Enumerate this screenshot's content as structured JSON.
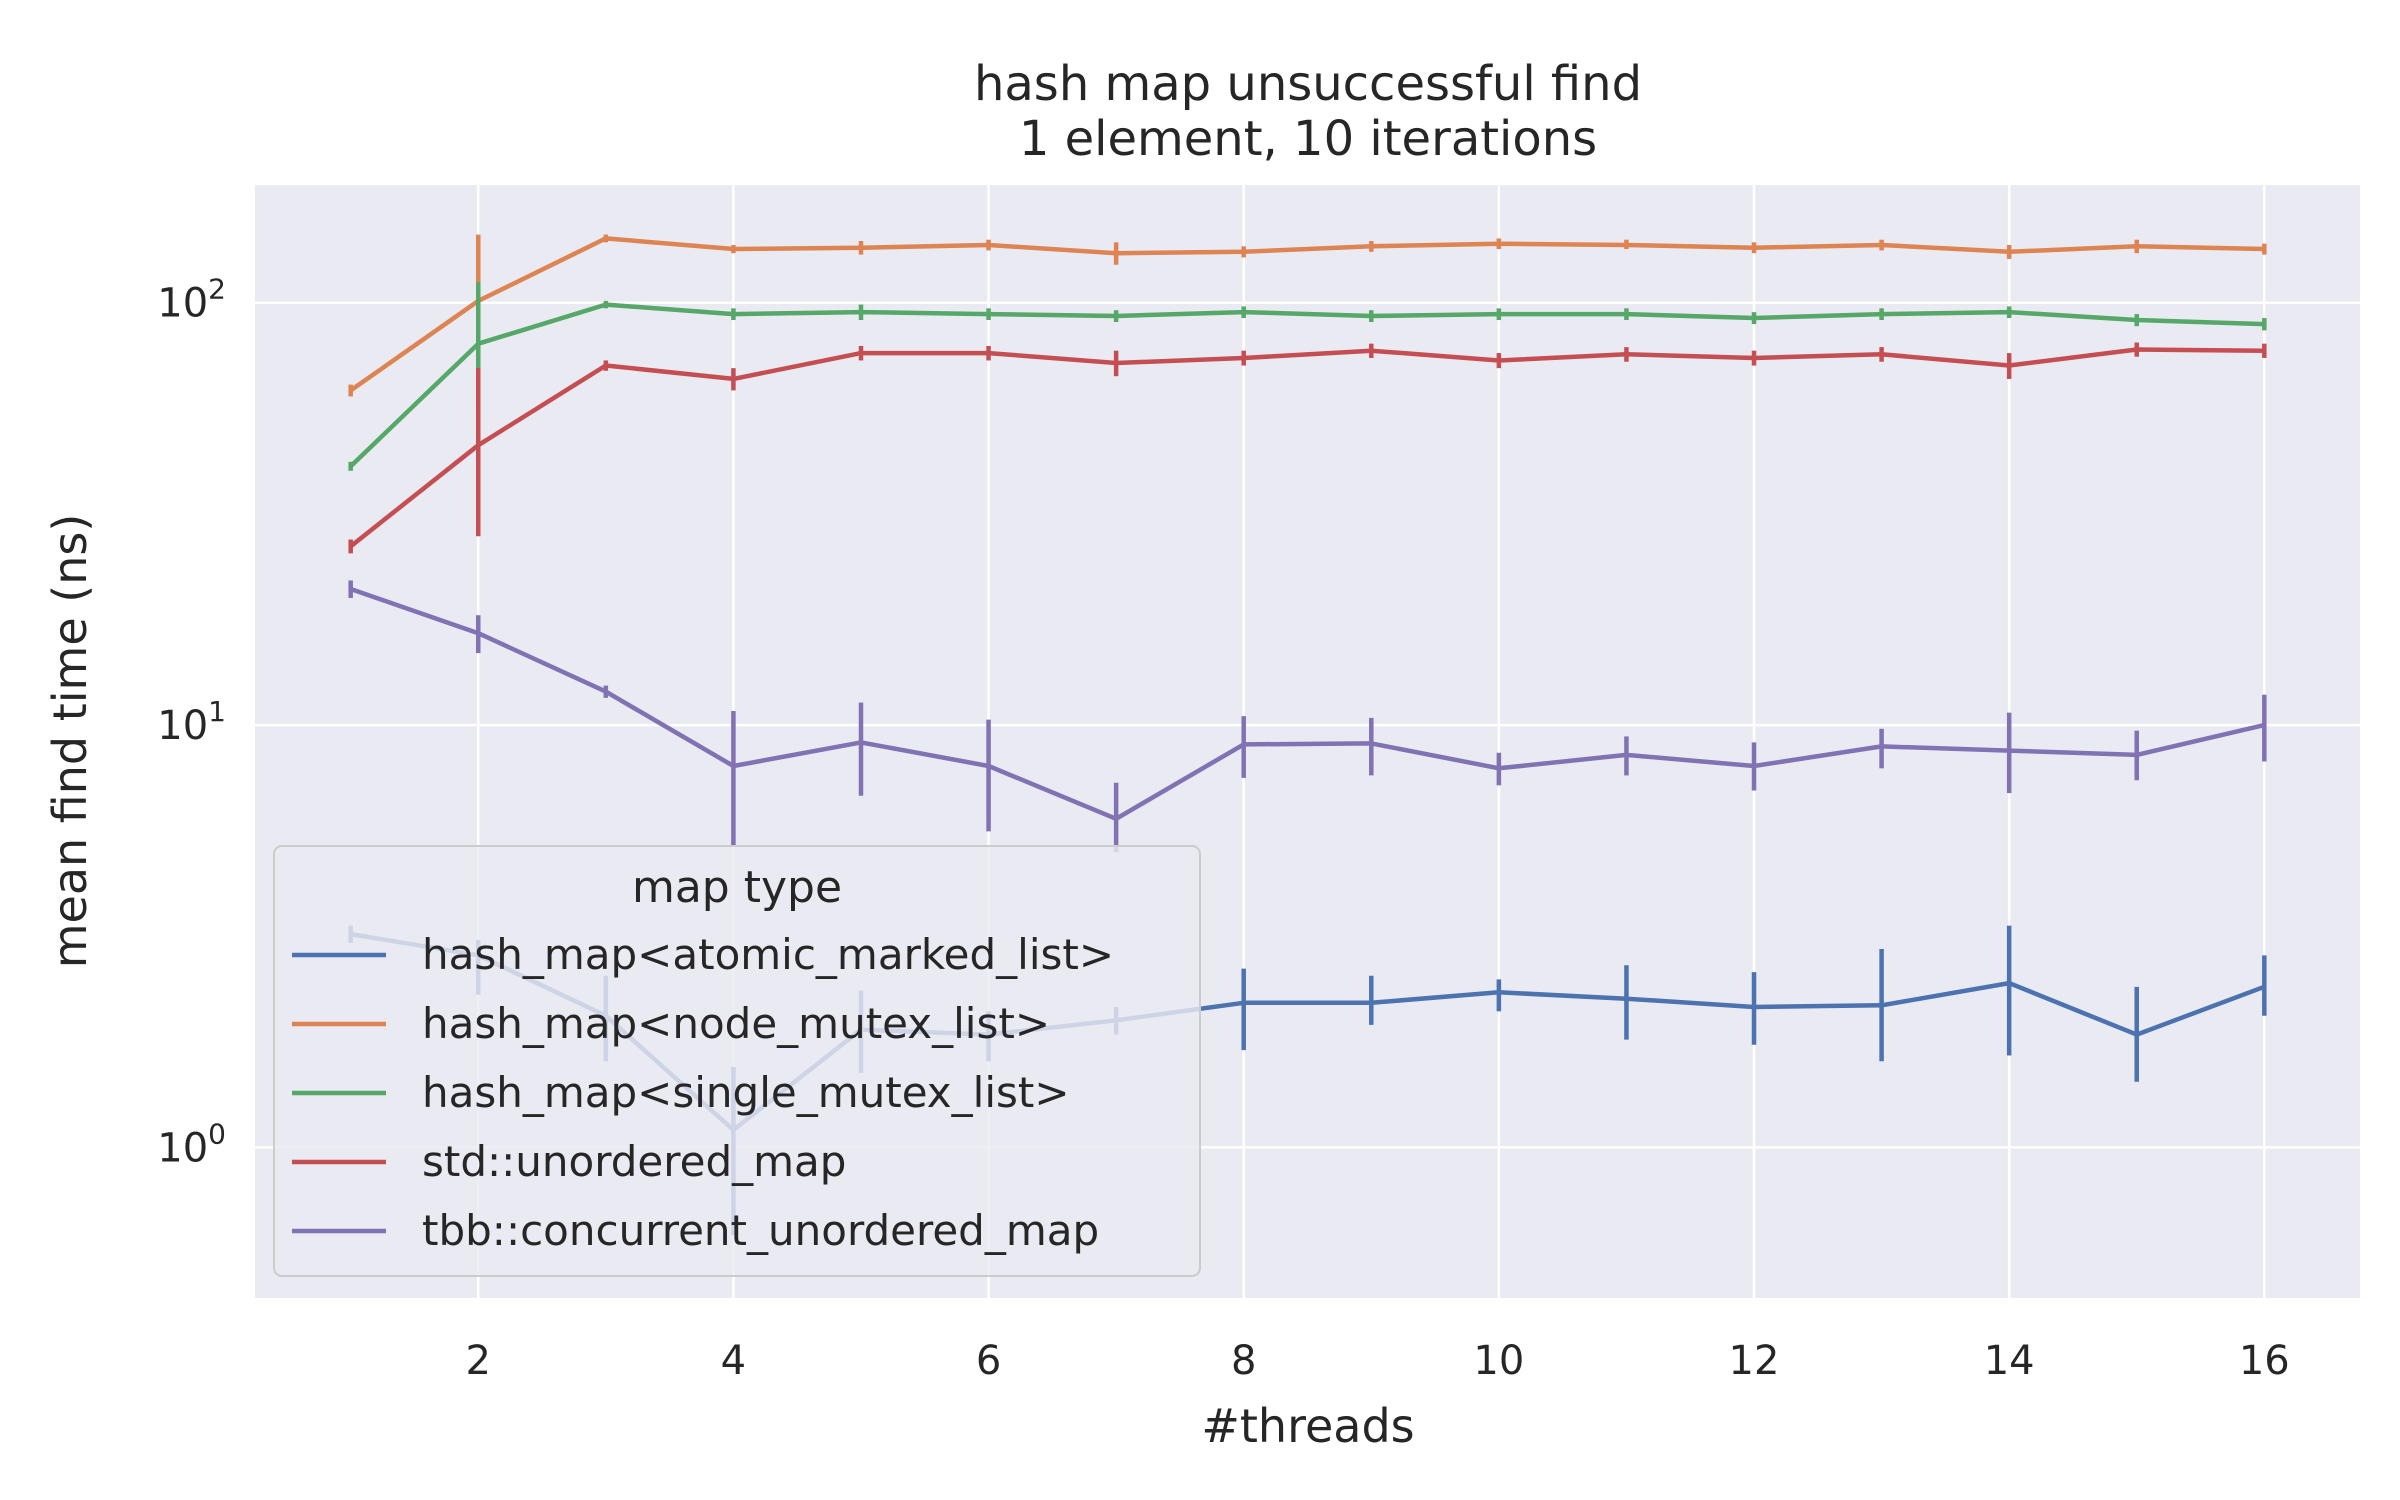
{
  "chart_data": {
    "type": "line",
    "title": "hash map unsuccessful find",
    "subtitle": "1 element, 10 iterations",
    "xlabel": "#threads",
    "ylabel": "mean find time (ns)",
    "yscale": "log",
    "xlim": [
      0.25,
      16.75
    ],
    "ylim": [
      0.44,
      190
    ],
    "x_ticks": [
      2,
      4,
      6,
      8,
      10,
      12,
      14,
      16
    ],
    "y_ticks": [
      {
        "value": 1,
        "base": "10",
        "exp": "0"
      },
      {
        "value": 10,
        "base": "10",
        "exp": "1"
      },
      {
        "value": 100,
        "base": "10",
        "exp": "2"
      }
    ],
    "grid": true,
    "background": "#eaeaf2",
    "legend": {
      "title": "map type",
      "placement": "lower-left"
    },
    "x": [
      1,
      2,
      3,
      4,
      5,
      6,
      7,
      8,
      9,
      10,
      11,
      12,
      13,
      14,
      15,
      16
    ],
    "series": [
      {
        "name": "hash_map<atomic_marked_list>",
        "color": "#4c72b0",
        "values": [
          3.2,
          2.85,
          2.05,
          1.1,
          1.9,
          1.85,
          2.0,
          2.2,
          2.2,
          2.33,
          2.25,
          2.15,
          2.17,
          2.45,
          1.85,
          2.4
        ],
        "err_low": [
          3.05,
          2.3,
          1.6,
          0.62,
          1.5,
          1.6,
          1.85,
          1.7,
          1.95,
          2.1,
          1.8,
          1.75,
          1.6,
          1.65,
          1.43,
          2.05
        ],
        "err_high": [
          3.35,
          3.1,
          2.55,
          1.55,
          2.35,
          2.1,
          2.15,
          2.65,
          2.55,
          2.5,
          2.7,
          2.6,
          2.95,
          3.35,
          2.4,
          2.85
        ]
      },
      {
        "name": "hash_map<node_mutex_list>",
        "color": "#dd8452",
        "values": [
          62,
          101,
          142,
          134,
          135,
          137,
          131,
          132,
          136,
          138,
          137,
          135,
          137,
          132,
          136,
          134
        ],
        "err_low": [
          60,
          80,
          139,
          131,
          130,
          133,
          123,
          128,
          132,
          134,
          134,
          131,
          133,
          127,
          131,
          130
        ],
        "err_high": [
          64,
          145,
          145,
          137,
          140,
          141,
          139,
          136,
          140,
          142,
          141,
          139,
          141,
          137,
          141,
          138
        ]
      },
      {
        "name": "hash_map<single_mutex_list>",
        "color": "#55a868",
        "values": [
          41,
          80,
          99,
          94,
          95,
          94,
          93,
          95,
          93,
          94,
          94,
          92,
          94,
          95,
          91,
          89
        ],
        "err_low": [
          40,
          58,
          97,
          91,
          91,
          91,
          90,
          92,
          90,
          91,
          91,
          89,
          91,
          92,
          88,
          86
        ],
        "err_high": [
          42,
          112,
          101,
          97,
          99,
          97,
          96,
          98,
          96,
          97,
          97,
          95,
          97,
          98,
          94,
          92
        ]
      },
      {
        "name": "std::unordered_map",
        "color": "#c44e52",
        "values": [
          26.5,
          46,
          71,
          66,
          76,
          76,
          72,
          74,
          77,
          73,
          75.5,
          74,
          75.5,
          71,
          77.5,
          77
        ],
        "err_low": [
          25.5,
          28,
          69,
          62,
          73,
          73,
          67,
          71,
          74,
          70,
          72.5,
          71,
          72.5,
          66,
          74.5,
          74
        ],
        "err_high": [
          27.5,
          70,
          73,
          70,
          79,
          79,
          77,
          77,
          80,
          76,
          78.5,
          77,
          78.5,
          76,
          80.5,
          80
        ]
      },
      {
        "name": "tbb::concurrent_unordered_map",
        "color": "#8172b3",
        "values": [
          21,
          16.5,
          12,
          8.0,
          9.1,
          8.0,
          6.0,
          9.0,
          9.05,
          7.9,
          8.5,
          8.0,
          8.9,
          8.7,
          8.5,
          10.0
        ],
        "err_low": [
          20,
          14.8,
          11.6,
          5.2,
          6.8,
          5.6,
          5.0,
          7.5,
          7.6,
          7.2,
          7.6,
          7.0,
          7.9,
          6.9,
          7.4,
          8.2
        ],
        "err_high": [
          22,
          18.2,
          12.4,
          10.8,
          11.3,
          10.3,
          7.3,
          10.5,
          10.4,
          8.6,
          9.4,
          9.1,
          9.8,
          10.7,
          9.7,
          11.8
        ]
      }
    ]
  }
}
